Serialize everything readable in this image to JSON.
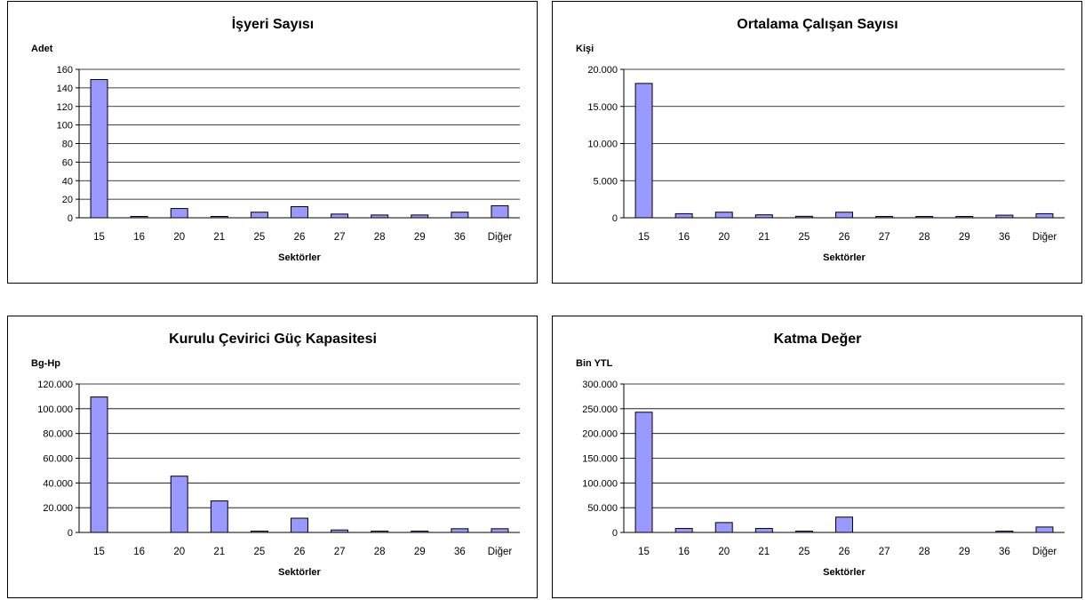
{
  "chart_data": [
    {
      "type": "bar",
      "title": "İşyeri Sayısı",
      "ylabel": "Adet",
      "xlabel": "Sektörler",
      "categories": [
        "15",
        "16",
        "20",
        "21",
        "25",
        "26",
        "27",
        "28",
        "29",
        "36",
        "Diğer"
      ],
      "values": [
        149,
        1,
        10,
        1,
        6,
        12,
        4,
        3,
        3,
        6,
        13
      ],
      "ylim": [
        0,
        160
      ],
      "yticks": [
        0,
        20,
        40,
        60,
        80,
        100,
        120,
        140,
        160
      ],
      "ytick_labels": [
        "0",
        "20",
        "40",
        "60",
        "80",
        "100",
        "120",
        "140",
        "160"
      ],
      "grid": true,
      "bar_color": "#9999ff"
    },
    {
      "type": "bar",
      "title": "Ortalama Çalışan Sayısı",
      "ylabel": "Kişi",
      "xlabel": "Sektörler",
      "categories": [
        "15",
        "16",
        "20",
        "21",
        "25",
        "26",
        "27",
        "28",
        "29",
        "36",
        "Diğer"
      ],
      "values": [
        18100,
        550,
        750,
        400,
        200,
        750,
        150,
        20,
        20,
        350,
        550
      ],
      "ylim": [
        0,
        20000
      ],
      "yticks": [
        0,
        5000,
        10000,
        15000,
        20000
      ],
      "ytick_labels": [
        "0",
        "5.000",
        "10.000",
        "15.000",
        "20.000"
      ],
      "grid": true,
      "bar_color": "#9999ff"
    },
    {
      "type": "bar",
      "title": "Kurulu Çevirici Güç Kapasitesi",
      "ylabel": "Bg-Hp",
      "xlabel": "Sektörler",
      "categories": [
        "15",
        "16",
        "20",
        "21",
        "25",
        "26",
        "27",
        "28",
        "29",
        "36",
        "Diğer"
      ],
      "values": [
        109500,
        0,
        45500,
        25500,
        800,
        11500,
        2000,
        800,
        800,
        3000,
        3000
      ],
      "ylim": [
        0,
        120000
      ],
      "yticks": [
        0,
        20000,
        40000,
        60000,
        80000,
        100000,
        120000
      ],
      "ytick_labels": [
        "0",
        "20.000",
        "40.000",
        "60.000",
        "80.000",
        "100.000",
        "120.000"
      ],
      "grid": true,
      "bar_color": "#9999ff"
    },
    {
      "type": "bar",
      "title": "Katma Değer",
      "ylabel": "Bin YTL",
      "xlabel": "Sektörler",
      "categories": [
        "15",
        "16",
        "20",
        "21",
        "25",
        "26",
        "27",
        "28",
        "29",
        "36",
        "Diğer"
      ],
      "values": [
        243000,
        8000,
        20000,
        8000,
        2000,
        31000,
        0,
        0,
        0,
        2000,
        11000
      ],
      "ylim": [
        0,
        300000
      ],
      "yticks": [
        0,
        50000,
        100000,
        150000,
        200000,
        250000,
        300000
      ],
      "ytick_labels": [
        "0",
        "50.000",
        "100.000",
        "150.000",
        "200.000",
        "250.000",
        "300.000"
      ],
      "grid": true,
      "bar_color": "#9999ff"
    }
  ]
}
